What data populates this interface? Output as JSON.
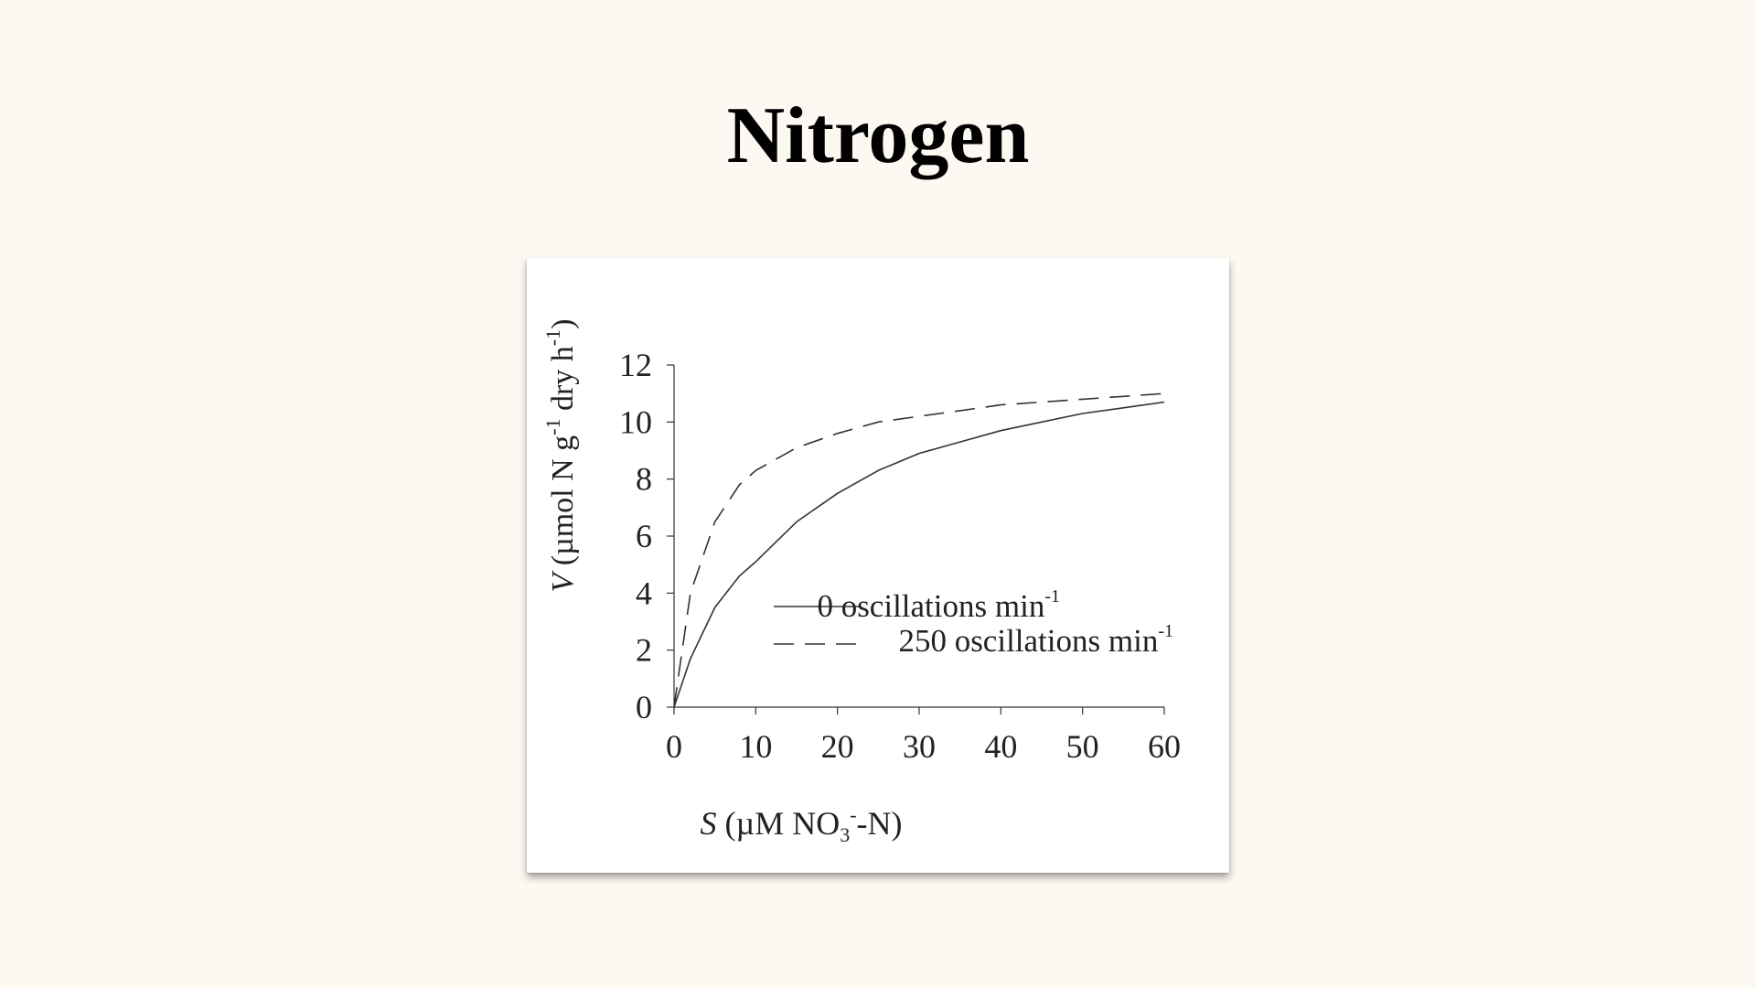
{
  "slide": {
    "title": "Nitrogen"
  },
  "chart_data": {
    "type": "line",
    "xlabel": {
      "italic": "S",
      "pre": " (µM NO",
      "sub": "3",
      "sup": "-",
      "post": "-N)"
    },
    "ylabel": {
      "italic": "V",
      "pre": " (µmol N g",
      "sup1": "-1",
      "mid": " dry h",
      "sup2": "-1",
      "post": ")"
    },
    "xlim": [
      0,
      60
    ],
    "ylim": [
      0,
      12
    ],
    "xticks": [
      0,
      10,
      20,
      30,
      40,
      50,
      60
    ],
    "yticks": [
      0,
      2,
      4,
      6,
      8,
      10,
      12
    ],
    "grid": false,
    "legend_position": "center-right",
    "series": [
      {
        "label": "0 oscillations min",
        "label_sup": "-1",
        "style": "solid",
        "color": "#333333",
        "x": [
          0,
          2,
          5,
          8,
          10,
          15,
          20,
          25,
          30,
          35,
          40,
          45,
          50,
          55,
          60
        ],
        "y": [
          0,
          1.7,
          3.5,
          4.6,
          5.1,
          6.5,
          7.5,
          8.3,
          8.9,
          9.3,
          9.7,
          10.0,
          10.3,
          10.5,
          10.7
        ]
      },
      {
        "label": "250 oscillations min",
        "label_sup": "-1",
        "style": "dashed",
        "color": "#333333",
        "x": [
          0,
          2,
          5,
          8,
          10,
          15,
          20,
          25,
          30,
          35,
          40,
          45,
          50,
          55,
          60
        ],
        "y": [
          0,
          4.0,
          6.5,
          7.8,
          8.3,
          9.1,
          9.6,
          10.0,
          10.2,
          10.4,
          10.6,
          10.7,
          10.8,
          10.9,
          11.0
        ]
      }
    ]
  }
}
